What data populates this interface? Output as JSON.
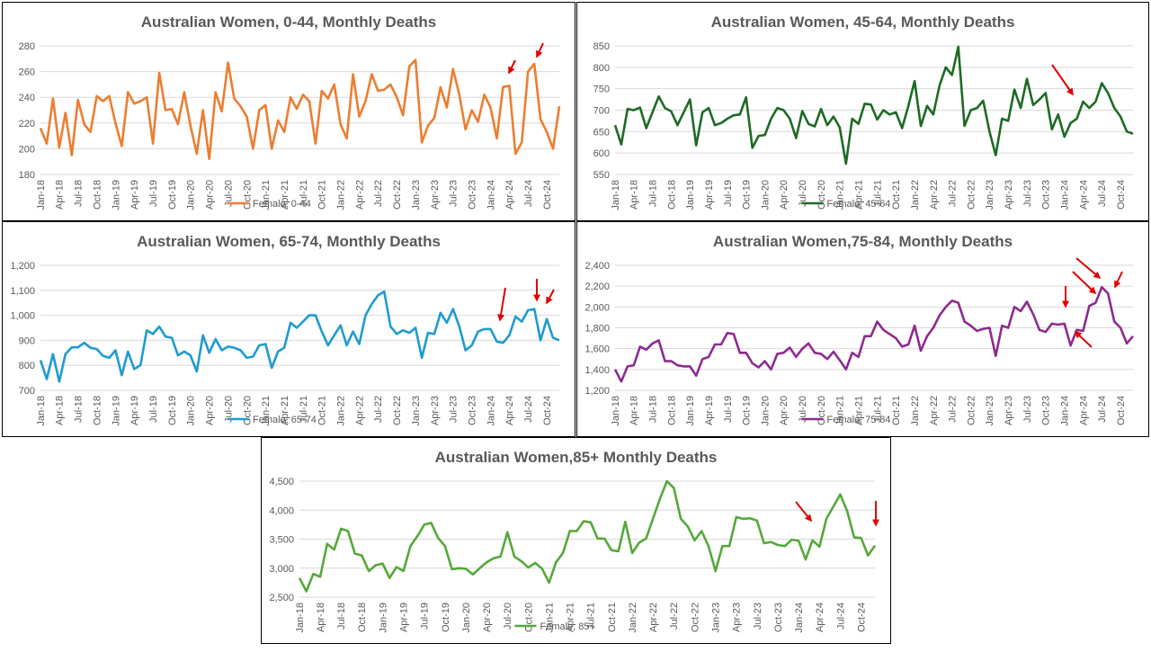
{
  "chart_data": [
    {
      "type": "line",
      "title": "Australian Women, 0-44, Monthly Deaths",
      "categories": [
        "Jan-18",
        null,
        null,
        "Apr-18",
        null,
        null,
        "Jul-18",
        null,
        null,
        "Oct-18",
        null,
        null,
        "Jan-19",
        null,
        null,
        "Apr-19",
        null,
        null,
        "Jul-19",
        null,
        null,
        "Oct-19",
        null,
        null,
        "Jan-20",
        null,
        null,
        "Apr-20",
        null,
        null,
        "Jul-20",
        null,
        null,
        "Oct-20",
        null,
        null,
        "Jan-21",
        null,
        null,
        "Apr-21",
        null,
        null,
        "Jul-21",
        null,
        null,
        "Oct-21",
        null,
        null,
        "Jan-22",
        null,
        null,
        "Apr-22",
        null,
        null,
        "Jul-22",
        null,
        null,
        "Oct-22",
        null,
        null,
        "Jan-23",
        null,
        null,
        "Apr-23",
        null,
        null,
        "Jul-23",
        null,
        null,
        "Oct-23",
        null,
        null,
        "Jan-24",
        null,
        null,
        "Apr-24",
        null,
        null,
        "Jul-24",
        null,
        null,
        "Oct-24",
        null,
        null
      ],
      "series": [
        {
          "name": "Female, 0-44",
          "color": "#ed7d31",
          "values": [
            216,
            204,
            239,
            201,
            228,
            195,
            238,
            219,
            213,
            241,
            237,
            241,
            220,
            202,
            244,
            235,
            237,
            240,
            204,
            259,
            230,
            231,
            219,
            244,
            218,
            196,
            230,
            192,
            244,
            229,
            267,
            239,
            233,
            225,
            200,
            230,
            234,
            200,
            222,
            213,
            240,
            231,
            242,
            237,
            204,
            245,
            239,
            250,
            219,
            208,
            258,
            225,
            237,
            258,
            245,
            246,
            250,
            240,
            226,
            264,
            269,
            205,
            218,
            224,
            248,
            232,
            262,
            242,
            215,
            230,
            221,
            242,
            232,
            208,
            248,
            249,
            196,
            205,
            260,
            266,
            223,
            213,
            200,
            233
          ]
        }
      ],
      "ylim": [
        180,
        280
      ],
      "yticks": [
        180,
        200,
        220,
        240,
        260,
        280
      ],
      "legend": "bottom"
    },
    {
      "type": "line",
      "title": "Australian Women, 45-64, Monthly Deaths",
      "categories": [
        "Jan-18",
        null,
        null,
        "Apr-18",
        null,
        null,
        "Jul-18",
        null,
        null,
        "Oct-18",
        null,
        null,
        "Jan-19",
        null,
        null,
        "Apr-19",
        null,
        null,
        "Jul-19",
        null,
        null,
        "Oct-19",
        null,
        null,
        "Jan-20",
        null,
        null,
        "Apr-20",
        null,
        null,
        "Jul-20",
        null,
        null,
        "Oct-20",
        null,
        null,
        "Jan-21",
        null,
        null,
        "Apr-21",
        null,
        null,
        "Jul-21",
        null,
        null,
        "Oct-21",
        null,
        null,
        "Jan-22",
        null,
        null,
        "Apr-22",
        null,
        null,
        "Jul-22",
        null,
        null,
        "Oct-22",
        null,
        null,
        "Jan-23",
        null,
        null,
        "Apr-23",
        null,
        null,
        "Jul-23",
        null,
        null,
        "Oct-23",
        null,
        null,
        "Jan-24",
        null,
        null,
        "Apr-24",
        null,
        null,
        "Jul-24",
        null,
        null,
        "Oct-24",
        null,
        null
      ],
      "series": [
        {
          "name": "Female, 45-64",
          "color": "#1e6b24",
          "values": [
            665,
            620,
            703,
            700,
            706,
            658,
            695,
            732,
            705,
            697,
            665,
            695,
            725,
            618,
            695,
            705,
            665,
            670,
            680,
            688,
            690,
            730,
            612,
            640,
            642,
            680,
            705,
            700,
            680,
            635,
            698,
            668,
            662,
            703,
            665,
            685,
            660,
            575,
            680,
            668,
            715,
            713,
            678,
            700,
            690,
            695,
            658,
            710,
            768,
            663,
            710,
            690,
            758,
            800,
            782,
            848,
            663,
            700,
            705,
            722,
            650,
            595,
            680,
            675,
            748,
            705,
            773,
            712,
            725,
            740,
            655,
            690,
            638,
            670,
            680,
            720,
            705,
            720,
            763,
            740,
            705,
            685,
            650,
            645
          ]
        }
      ],
      "ylim": [
        550,
        850
      ],
      "yticks": [
        550,
        600,
        650,
        700,
        750,
        800,
        850
      ],
      "legend": "bottom"
    },
    {
      "type": "line",
      "title": "Australian Women, 65-74, Monthly Deaths",
      "categories": [
        "Jan-18",
        null,
        null,
        "Apr-18",
        null,
        null,
        "Jul-18",
        null,
        null,
        "Oct-18",
        null,
        null,
        "Jan-19",
        null,
        null,
        "Apr-19",
        null,
        null,
        "Jul-19",
        null,
        null,
        "Oct-19",
        null,
        null,
        "Jan-20",
        null,
        null,
        "Apr-20",
        null,
        null,
        "Jul-20",
        null,
        null,
        "Oct-20",
        null,
        null,
        "Jan-21",
        null,
        null,
        "Apr-21",
        null,
        null,
        "Jul-21",
        null,
        null,
        "Oct-21",
        null,
        null,
        "Jan-22",
        null,
        null,
        "Apr-22",
        null,
        null,
        "Jul-22",
        null,
        null,
        "Oct-22",
        null,
        null,
        "Jan-23",
        null,
        null,
        "Apr-23",
        null,
        null,
        "Jul-23",
        null,
        null,
        "Oct-23",
        null,
        null,
        "Jan-24",
        null,
        null,
        "Apr-24",
        null,
        null,
        "Jul-24",
        null,
        null,
        "Oct-24",
        null,
        null
      ],
      "series": [
        {
          "name": "Female, 65-74",
          "color": "#1f9bd0",
          "values": [
            820,
            745,
            845,
            735,
            845,
            872,
            872,
            890,
            870,
            865,
            838,
            830,
            860,
            760,
            855,
            785,
            800,
            940,
            925,
            955,
            915,
            910,
            840,
            855,
            840,
            775,
            920,
            850,
            905,
            860,
            875,
            870,
            860,
            830,
            835,
            880,
            885,
            790,
            855,
            870,
            970,
            950,
            975,
            1000,
            1000,
            935,
            880,
            920,
            960,
            880,
            935,
            885,
            1000,
            1045,
            1080,
            1095,
            955,
            925,
            940,
            930,
            950,
            830,
            930,
            925,
            1010,
            970,
            1025,
            955,
            860,
            880,
            935,
            945,
            945,
            895,
            890,
            920,
            995,
            975,
            1020,
            1025,
            900,
            985,
            910,
            900
          ]
        }
      ],
      "ylim": [
        700,
        1200
      ],
      "yticks": [
        700,
        800,
        900,
        {
          "value": 1000,
          "label": "1,000"
        },
        {
          "value": 1100,
          "label": "1,100"
        },
        {
          "value": 1200,
          "label": "1,200"
        }
      ],
      "legend": "bottom"
    },
    {
      "type": "line",
      "title": "Australian Women,75-84, Monthly Deaths",
      "categories": [
        "Jan-18",
        null,
        null,
        "Apr-18",
        null,
        null,
        "Jul-18",
        null,
        null,
        "Oct-18",
        null,
        null,
        "Jan-19",
        null,
        null,
        "Apr-19",
        null,
        null,
        "Jul-19",
        null,
        null,
        "Oct-19",
        null,
        null,
        "Jan-20",
        null,
        null,
        "Apr-20",
        null,
        null,
        "Jul-20",
        null,
        null,
        "Oct-20",
        null,
        null,
        "Jan-21",
        null,
        null,
        "Apr-21",
        null,
        null,
        "Jul-21",
        null,
        null,
        "Oct-21",
        null,
        null,
        "Jan-22",
        null,
        null,
        "Apr-22",
        null,
        null,
        "Jul-22",
        null,
        null,
        "Oct-22",
        null,
        null,
        "Jan-23",
        null,
        null,
        "Apr-23",
        null,
        null,
        "Jul-23",
        null,
        null,
        "Oct-23",
        null,
        null,
        "Jan-24",
        null,
        null,
        "Apr-24",
        null,
        null,
        "Jul-24",
        null,
        null,
        "Oct-24",
        null,
        null
      ],
      "series": [
        {
          "name": "Female, 75-84",
          "color": "#8e2b8e",
          "values": [
            1400,
            1285,
            1430,
            1440,
            1620,
            1590,
            1650,
            1680,
            1480,
            1480,
            1440,
            1430,
            1430,
            1340,
            1500,
            1520,
            1640,
            1640,
            1750,
            1740,
            1560,
            1560,
            1460,
            1420,
            1480,
            1400,
            1550,
            1560,
            1610,
            1520,
            1600,
            1650,
            1560,
            1550,
            1500,
            1570,
            1490,
            1400,
            1560,
            1520,
            1720,
            1720,
            1860,
            1780,
            1740,
            1700,
            1620,
            1640,
            1820,
            1580,
            1720,
            1800,
            1920,
            2000,
            2060,
            2040,
            1860,
            1820,
            1770,
            1790,
            1800,
            1530,
            1820,
            1800,
            2000,
            1960,
            2050,
            1930,
            1780,
            1760,
            1840,
            1830,
            1840,
            1630,
            1780,
            1770,
            2010,
            2040,
            2190,
            2130,
            1860,
            1800,
            1650,
            1720
          ]
        }
      ],
      "ylim": [
        1200,
        2400
      ],
      "yticks": [
        {
          "value": 1200,
          "label": "1,200"
        },
        {
          "value": 1400,
          "label": "1,400"
        },
        {
          "value": 1600,
          "label": "1,600"
        },
        {
          "value": 1800,
          "label": "1,800"
        },
        {
          "value": 2000,
          "label": "2,000"
        },
        {
          "value": 2200,
          "label": "2,200"
        },
        {
          "value": 2400,
          "label": "2,400"
        }
      ],
      "legend": "bottom"
    },
    {
      "type": "line",
      "title": "Australian Women,85+ Monthly Deaths",
      "categories": [
        "Jan-18",
        null,
        null,
        "Apr-18",
        null,
        null,
        "Jul-18",
        null,
        null,
        "Oct-18",
        null,
        null,
        "Jan-19",
        null,
        null,
        "Apr-19",
        null,
        null,
        "Jul-19",
        null,
        null,
        "Oct-19",
        null,
        null,
        "Jan-20",
        null,
        null,
        "Apr-20",
        null,
        null,
        "Jul-20",
        null,
        null,
        "Oct-20",
        null,
        null,
        "Jan-21",
        null,
        null,
        "Apr-21",
        null,
        null,
        "Jul-21",
        null,
        null,
        "Oct-21",
        null,
        null,
        "Jan-22",
        null,
        null,
        "Apr-22",
        null,
        null,
        "Jul-22",
        null,
        null,
        "Oct-22",
        null,
        null,
        "Jan-23",
        null,
        null,
        "Apr-23",
        null,
        null,
        "Jul-23",
        null,
        null,
        "Oct-23",
        null,
        null,
        "Jan-24",
        null,
        null,
        "Apr-24",
        null,
        null,
        "Jul-24",
        null,
        null,
        "Oct-24",
        null,
        null
      ],
      "series": [
        {
          "name": "Female, 85+",
          "color": "#56a83a",
          "values": [
            2830,
            2600,
            2900,
            2850,
            3420,
            3320,
            3680,
            3640,
            3250,
            3220,
            2950,
            3050,
            3080,
            2830,
            3020,
            2950,
            3380,
            3550,
            3750,
            3780,
            3520,
            3380,
            2980,
            3000,
            2990,
            2890,
            3000,
            3100,
            3170,
            3200,
            3620,
            3200,
            3120,
            3010,
            3090,
            2990,
            2750,
            3100,
            3260,
            3640,
            3640,
            3810,
            3790,
            3510,
            3510,
            3310,
            3290,
            3800,
            3260,
            3440,
            3510,
            3860,
            4200,
            4500,
            4380,
            3850,
            3720,
            3480,
            3640,
            3380,
            2950,
            3380,
            3380,
            3880,
            3850,
            3860,
            3820,
            3430,
            3450,
            3400,
            3380,
            3490,
            3470,
            3150,
            3480,
            3370,
            3850,
            4060,
            4270,
            3980,
            3530,
            3520,
            3220,
            3390
          ]
        }
      ],
      "ylim": [
        2500,
        4500
      ],
      "yticks": [
        {
          "value": 2500,
          "label": "2,500"
        },
        {
          "value": 3000,
          "label": "3,000"
        },
        {
          "value": 3500,
          "label": "3,500"
        },
        {
          "value": 4000,
          "label": "4,000"
        },
        {
          "value": 4500,
          "label": "4,500"
        }
      ],
      "legend": "bottom"
    }
  ]
}
